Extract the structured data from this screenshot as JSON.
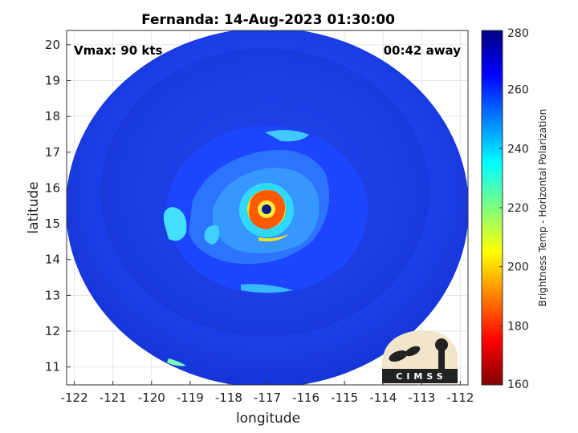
{
  "title": "Fernanda: 14-Aug-2023 01:30:00",
  "annotations": {
    "vmax": "Vmax: 90 kts",
    "time_away": "00:42 away"
  },
  "axes": {
    "xlabel": "longitude",
    "ylabel": "latitude",
    "xlim": [
      -122.2,
      -111.8
    ],
    "ylim": [
      10.5,
      20.4
    ],
    "xticks": [
      "-122",
      "-121",
      "-120",
      "-119",
      "-118",
      "-117",
      "-116",
      "-115",
      "-114",
      "-113",
      "-112"
    ],
    "yticks": [
      "11",
      "12",
      "13",
      "14",
      "15",
      "16",
      "17",
      "18",
      "19",
      "20"
    ],
    "grid": true
  },
  "colorbar": {
    "label": "Brightness Temp - Horizontal Polarization",
    "ticks": [
      "280",
      "260",
      "240",
      "220",
      "200",
      "180",
      "160"
    ],
    "range": [
      160,
      280
    ],
    "colormap": "jet"
  },
  "storm": {
    "center_lon": -116.9,
    "center_lat": 15.45
  },
  "logo": {
    "text": "CIMSS"
  },
  "colors": {
    "background_swath": "#1a3fe0",
    "eye": "#0a1a8c",
    "eyewall_warm": "#ff3a00",
    "rainband": "#35d6ff"
  }
}
